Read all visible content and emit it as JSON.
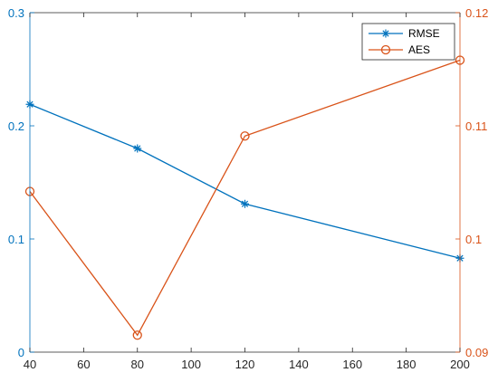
{
  "chart_data": {
    "type": "line",
    "x": [
      40,
      80,
      120,
      200
    ],
    "xlim": [
      40,
      200
    ],
    "x_ticks": [
      "40",
      "60",
      "80",
      "100",
      "120",
      "140",
      "160",
      "180",
      "200"
    ],
    "left_axis": {
      "ylim": [
        0,
        0.3
      ],
      "ticks": [
        "0",
        "0.1",
        "0.2",
        "0.3"
      ],
      "color": "#0072BD"
    },
    "right_axis": {
      "ylim": [
        0.09,
        0.12
      ],
      "ticks": [
        "0.09",
        "0.1",
        "0.11",
        "0.12"
      ],
      "color": "#D95319"
    },
    "series": [
      {
        "name": "RMSE",
        "axis": "left",
        "marker": "asterisk",
        "color": "#0072BD",
        "values": [
          0.219,
          0.18,
          0.131,
          0.083
        ]
      },
      {
        "name": "AES",
        "axis": "right",
        "marker": "circle",
        "color": "#D95319",
        "values": [
          0.1042,
          0.0915,
          0.1091,
          0.1158
        ]
      }
    ],
    "legend": "top-right",
    "grid": false,
    "title": "",
    "xlabel": "",
    "ylabel": ""
  }
}
